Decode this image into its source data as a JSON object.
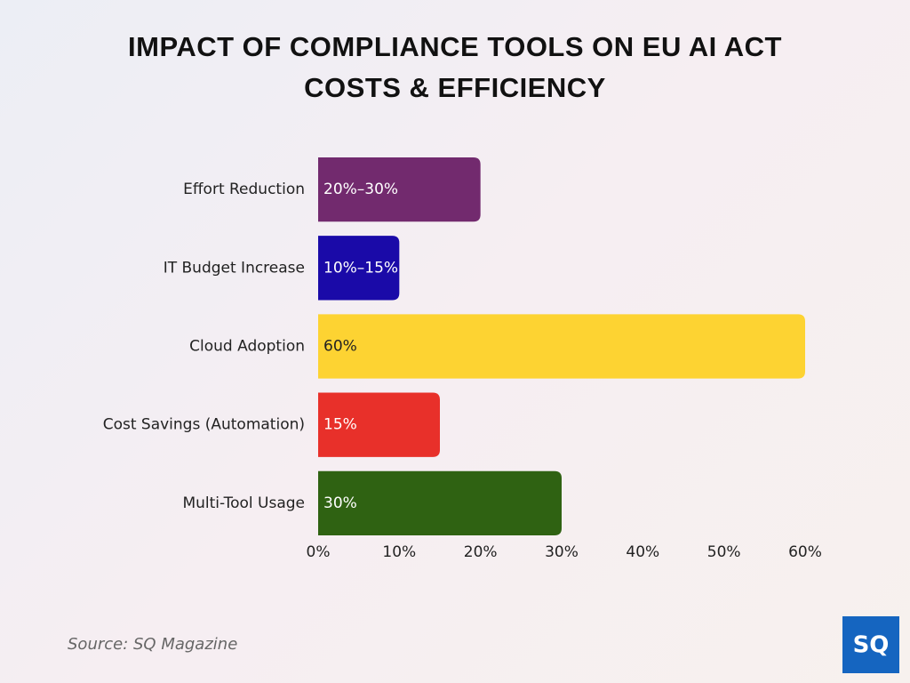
{
  "chart_data": {
    "type": "barh",
    "title": "IMPACT OF COMPLIANCE TOOLS ON EU AI ACT COSTS & EFFICIENCY",
    "categories": [
      "Effort Reduction",
      "IT Budget Increase",
      "Cloud Adoption",
      "Cost Savings (Automation)",
      "Multi-Tool Usage"
    ],
    "values": [
      20,
      10,
      60,
      15,
      30
    ],
    "value_labels": [
      "20%–30%",
      "10%–15%",
      "60%",
      "15%",
      "30%"
    ],
    "colors": [
      "#722a6e",
      "#1a0aa8",
      "#fdd332",
      "#e8302a",
      "#2f6212"
    ],
    "xlim": [
      0,
      60
    ],
    "xticks": [
      {
        "value": 0,
        "label": "0%"
      },
      {
        "value": 10,
        "label": "10%"
      },
      {
        "value": 20,
        "label": "20%"
      },
      {
        "value": 30,
        "label": "30%"
      },
      {
        "value": 40,
        "label": "40%"
      },
      {
        "value": 50,
        "label": "50%"
      },
      {
        "value": 60,
        "label": "60%"
      }
    ],
    "grid": false,
    "source": "Source: SQ Magazine",
    "logo": "SQ"
  }
}
